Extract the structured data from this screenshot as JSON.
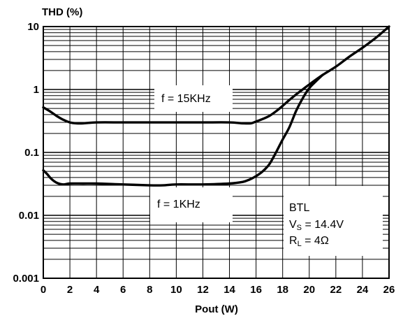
{
  "chart_data": {
    "type": "line",
    "ylabel": "THD (%)",
    "xlabel": "Pout (W)",
    "yscale": "log",
    "xlim": [
      0,
      26
    ],
    "ylim": [
      0.001,
      10
    ],
    "x_ticks": [
      "0",
      "2",
      "4",
      "6",
      "8",
      "10",
      "12",
      "14",
      "16",
      "18",
      "20",
      "22",
      "24",
      "26"
    ],
    "y_ticks": [
      "0.001",
      "0.01",
      "0.1",
      "1",
      "10"
    ],
    "grid": true,
    "series": [
      {
        "name": "f = 15KHz",
        "x": [
          0,
          0.5,
          1,
          1.5,
          2,
          2.5,
          3,
          4,
          6,
          8,
          10,
          12,
          14,
          15,
          15.6,
          16,
          16.5,
          17,
          17.5,
          18,
          18.5,
          19,
          19.5,
          20,
          21,
          22,
          23,
          24,
          25,
          26
        ],
        "y": [
          0.52,
          0.45,
          0.38,
          0.33,
          0.3,
          0.29,
          0.29,
          0.3,
          0.3,
          0.3,
          0.3,
          0.3,
          0.3,
          0.29,
          0.29,
          0.31,
          0.34,
          0.38,
          0.45,
          0.55,
          0.68,
          0.83,
          1.0,
          1.2,
          1.7,
          2.3,
          3.3,
          4.6,
          6.6,
          10.0
        ]
      },
      {
        "name": "f = 1KHz",
        "x": [
          0,
          0.3,
          0.6,
          1,
          1.5,
          2,
          3,
          4,
          6,
          8,
          9,
          10,
          12,
          14,
          15,
          15.5,
          16,
          16.5,
          17,
          17.5,
          18,
          18.5,
          19,
          19.5,
          20,
          20.5,
          21
        ],
        "y": [
          0.052,
          0.045,
          0.038,
          0.033,
          0.031,
          0.032,
          0.032,
          0.032,
          0.031,
          0.03,
          0.03,
          0.031,
          0.031,
          0.032,
          0.034,
          0.037,
          0.042,
          0.05,
          0.065,
          0.1,
          0.16,
          0.25,
          0.45,
          0.72,
          1.05,
          1.35,
          1.7
        ]
      }
    ],
    "annotations": {
      "khz15": "f = 15KHz",
      "khz1": "f = 1KHz",
      "conditions": {
        "line1": "BTL",
        "line2_main": "V",
        "line2_sub": "S",
        "line2_rest": " = 14.4V",
        "line3_main": "R",
        "line3_sub": "L",
        "line3_rest": " = 4Ω"
      }
    }
  }
}
